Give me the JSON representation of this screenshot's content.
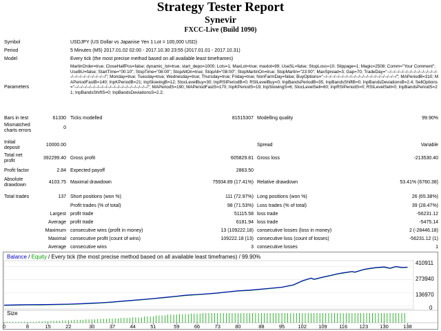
{
  "header": {
    "title": "Strategy Tester Report",
    "name": "Synevir",
    "server": "FXCC-Live (Build 1090)"
  },
  "info": {
    "symbol_label": "Symbol",
    "symbol": "USDJPY (US Dollar vs Japanise Yen 1 Lot = 100,000 USD)",
    "period_label": "Period",
    "period": "5 Minutes (M5) 2017.01.02 02:00 - 2017.10.30 23:55 (2017.01.01 - 2017.10.31)",
    "model_label": "Model",
    "model": "Every tick (the most precise method based on all available least timeframes)",
    "parameters_label": "Parameters",
    "parameters": "MartinOrder=true; CloseHalfPos=false; dynamic_lot=true; start_depo=1000; Lots=1; MaxLot=true; maxlot=99; UseSL=false; StopLoss=10; Slippage=1; Magic=2508; Comm=\"Your Comment\"; UseBU=false; StartTime=\"00:10\"; StopTime=\"08:00\"; StopAllOn=true; StopAll=\"08:00\"; StopMartinOn=true; StopMartin=\"23:00\"; MaxSpread=3; Gap=70; TradeDay=\"--/--/--/--/--/--/--/--/--/--/--/--/--/--/--/--/--/--/--/--/--/\"; Monday=true; Tuesday=true; Wednesday=true; Thursday=true; Friday=true; NonFarmDay=false; BuyOptions=\"--/--/--/--/--/--/--/--/--/--/--/--/--/--/--/--/--/--/\"; MAPeriodB=310; MAPeriodFastB=140; InpKPeriodB=21; InpSlowingB=12; StocLevelBuy=30; InpRSIPeriodB=0; RSILevelBuy=0; InpBandsPeriodB=35; InpBandsShiftB=0; InpBandsDeviationsB=2.4; SellOptions=\"--/--/--/--/--/--/--/--/--/--/--/--/--/--/--/--/--/--/\"; MAPeriodS=190; MAPeriodFastS=170; InpKPeriodS=19; InpSlowingS=6; StocLevelSell=60; InpRSIPeriodS=0; RSILevelSell=0; InpBandsPeriodS=21; InpBandsShiftS=0; InpBandsDeviationsS=2.2;"
  },
  "stats": {
    "bars_label": "Bars in test",
    "bars": "61330",
    "ticks_label": "Ticks modelled",
    "ticks": "81515307",
    "quality_label": "Modelling quality",
    "quality": "99.90%",
    "mismatch_label_1": "Mismatched",
    "mismatch_label_2": "charts errors",
    "mismatch": "0",
    "deposit_label_1": "Initial",
    "deposit_label_2": "deposit",
    "deposit": "10000.00",
    "spread_label": "Spread",
    "spread": "Variable",
    "net_label_1": "Total net",
    "net_label_2": "profit",
    "net": "392299.40",
    "gross_profit_label": "Gross profit",
    "gross_profit": "605829.81",
    "gross_loss_label": "Gross loss",
    "gross_loss": "-213530.40",
    "pf_label": "Profit factor",
    "pf": "2.84",
    "payoff_label": "Expected payoff",
    "payoff": "2863.50",
    "absdd_label_1": "Absolute",
    "absdd_label_2": "drawdown",
    "absdd": "4103.75",
    "maxdd_label": "Maximal drawdown",
    "maxdd": "75934.89 (17.41%)",
    "reldd_label": "Relative drawdown",
    "reldd": "53.41% (6760.38)",
    "trades_label": "Total trades",
    "trades": "137",
    "short_label": "Short positions (won %)",
    "short": "111 (72.97%)",
    "long_label": "Long positions (won %)",
    "long": "26 (65.38%)",
    "ptrades_label": "Profit trades (% of total)",
    "ptrades": "98 (71.53%)",
    "ltrades_label": "Loss trades (% of total)",
    "ltrades": "39 (28.47%)",
    "largest_label": "Largest",
    "average_label": "Average",
    "maximum_label": "Maximum",
    "maximal_label": "Maximal",
    "lp_label": "profit trade",
    "lp": "51115.58",
    "ll_label": "loss trade",
    "ll": "-56231.12",
    "ap_label": "profit trade",
    "ap": "6181.94",
    "al_label": "loss trade",
    "al": "-5475.14",
    "mcw_label": "consecutive wins (profit in money)",
    "mcw": "13 (109222.18)",
    "mcl_label": "consecutive losses (loss in money)",
    "mcl": "2 (-28446.18)",
    "mcp_label": "consecutive profit (count of wins)",
    "mcp": "109222.18 (13)",
    "mcll_label": "consecutive loss (count of losses)",
    "mcll": "-56231.12 (1)",
    "acw_label": "consecutive wins",
    "acw": "3",
    "acl_label": "consecutive losses",
    "acl": "1"
  },
  "chart_data": {
    "type": "line",
    "legend_balance": "Balance",
    "legend_sep": " / ",
    "legend_equity": "Equity",
    "legend_rest": " / Every tick (the most precise method based on all available least timeframes) / 99.90%",
    "balance_color": "#0000c8",
    "equity_color": "#00a000",
    "size_color": "#00a000",
    "size_label": "Size",
    "yticks": [
      "410911",
      "273940",
      "136970",
      "0"
    ],
    "ytick_values": [
      410911,
      273940,
      136970,
      0
    ],
    "ylim": [
      -30000,
      470000
    ],
    "xticks": [
      "0",
      "8",
      "15",
      "22",
      "30",
      "37",
      "44",
      "51",
      "59",
      "66",
      "73",
      "80",
      "88",
      "95",
      "102",
      "109",
      "116",
      "123",
      "130",
      "138"
    ],
    "xlim": [
      0,
      140
    ],
    "x": [
      0,
      4,
      8,
      12,
      15,
      18,
      22,
      26,
      30,
      33,
      37,
      40,
      44,
      48,
      51,
      55,
      59,
      62,
      66,
      70,
      73,
      76,
      80,
      84,
      88,
      91,
      95,
      99,
      102,
      105,
      106,
      109,
      112,
      114,
      116,
      119,
      120,
      123,
      125,
      127,
      130,
      132,
      134,
      136,
      138
    ],
    "balance": [
      10000,
      12000,
      14000,
      15000,
      16000,
      18000,
      20000,
      24000,
      30000,
      34000,
      42000,
      50000,
      60000,
      70000,
      78000,
      90000,
      102000,
      112000,
      120000,
      128000,
      136000,
      146000,
      158000,
      165000,
      176000,
      184000,
      196000,
      220000,
      262000,
      290000,
      278000,
      300000,
      320000,
      334000,
      344000,
      358000,
      352000,
      380000,
      390000,
      398000,
      405000,
      392000,
      410000,
      400000,
      402299
    ],
    "size_steps": [
      0,
      4,
      8,
      12,
      16,
      20,
      24,
      28,
      32,
      36,
      40,
      44,
      48,
      52,
      56,
      60,
      64,
      68,
      72,
      76,
      80,
      84,
      88,
      92,
      96,
      100,
      104,
      108,
      112,
      116,
      120,
      124,
      128,
      132,
      136
    ],
    "size_values": [
      0.1,
      0.1,
      0.1,
      0.15,
      0.2,
      0.25,
      0.3,
      0.35,
      0.4,
      0.45,
      0.5,
      0.55,
      0.65,
      0.75,
      0.85,
      0.9,
      0.95,
      1,
      1,
      1,
      1,
      1,
      1,
      1,
      1,
      1,
      1,
      1,
      1,
      1,
      1,
      1,
      1,
      1,
      1
    ]
  }
}
